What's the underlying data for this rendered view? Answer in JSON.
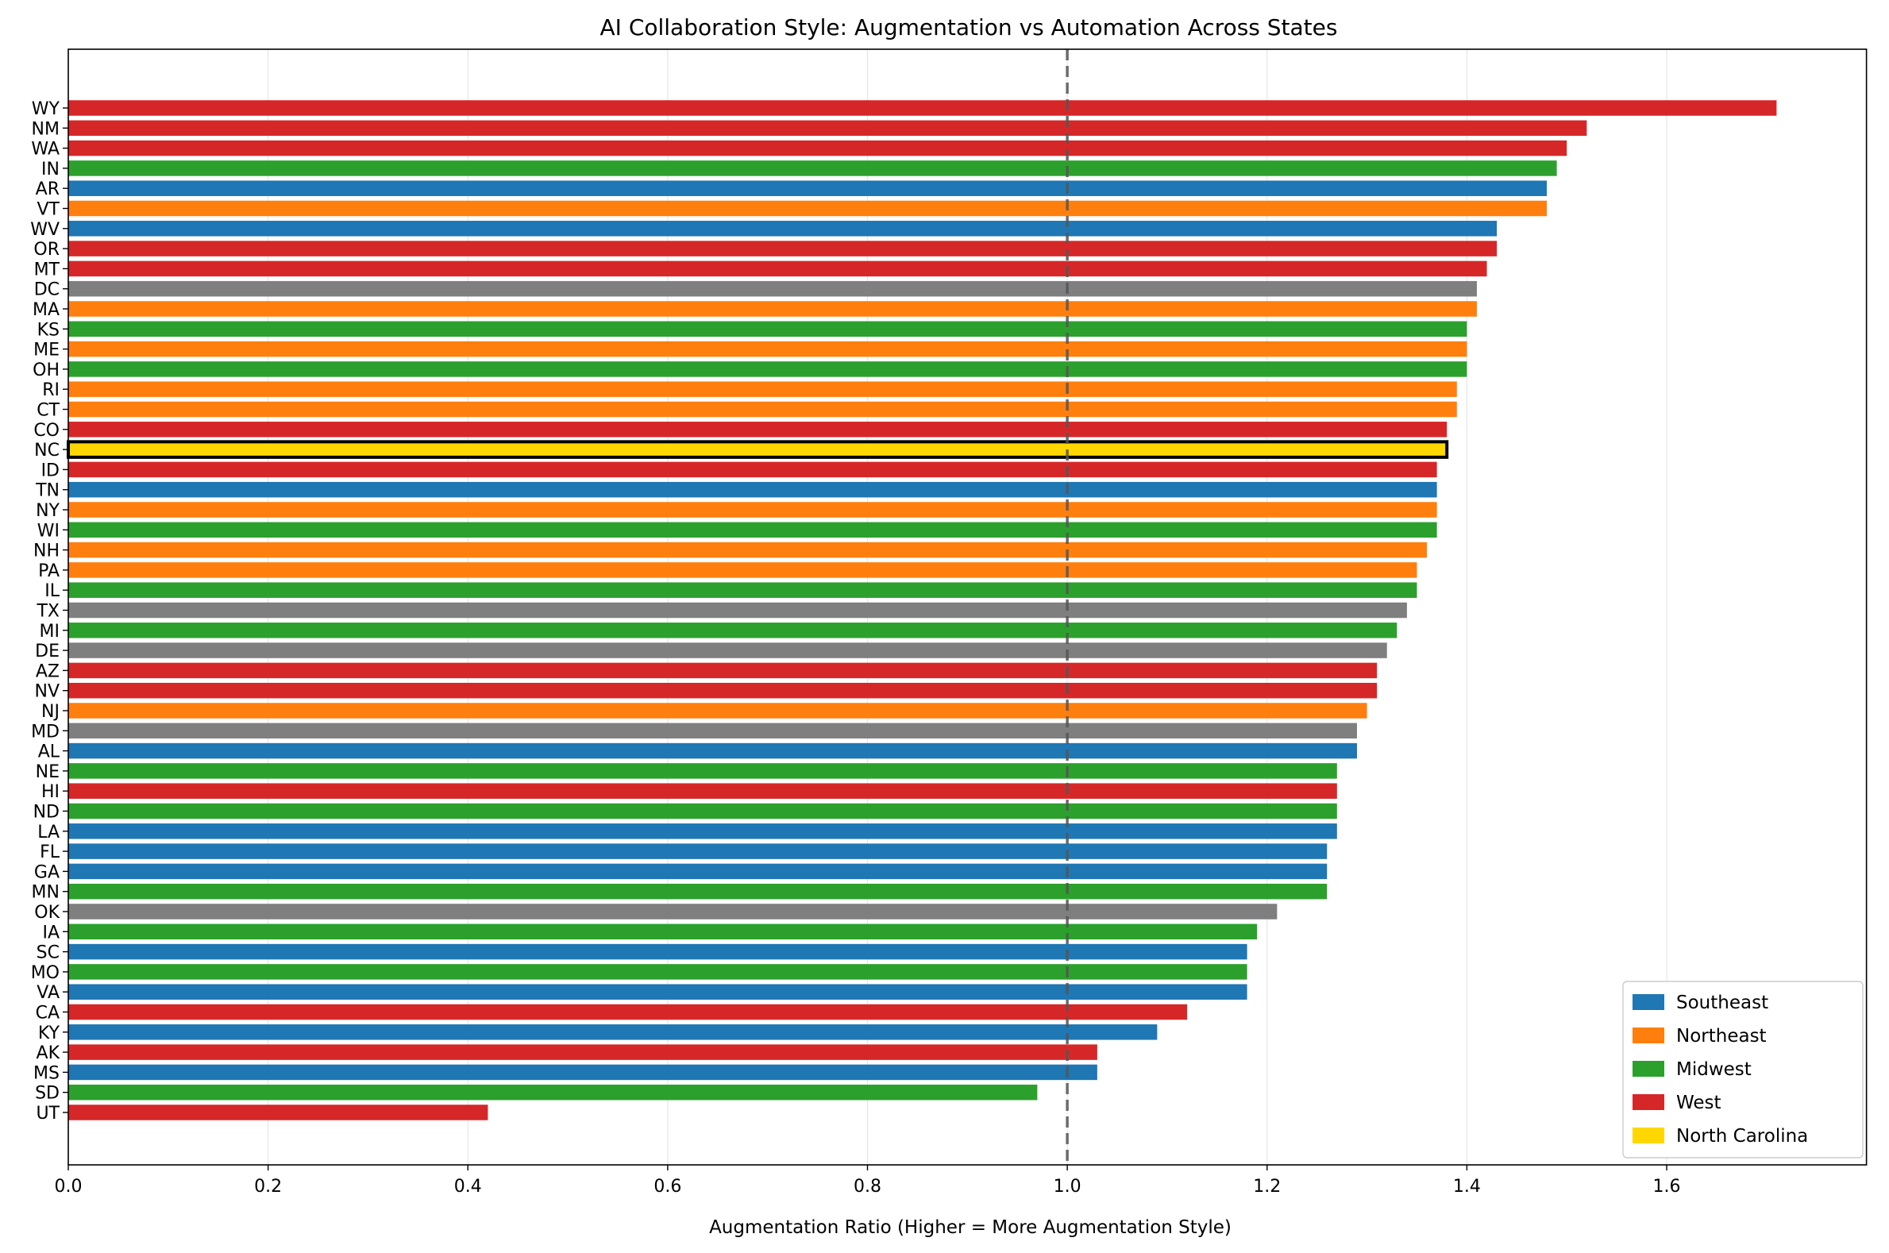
{
  "chart_data": {
    "type": "bar",
    "orientation": "horizontal",
    "title": "AI Collaboration Style: Augmentation vs Automation Across States",
    "xlabel": "Augmentation Ratio (Higher = More Augmentation Style)",
    "ylabel": "",
    "xlim": [
      0,
      1.8
    ],
    "xticks": [
      0.0,
      0.2,
      0.4,
      0.6,
      0.8,
      1.0,
      1.2,
      1.4,
      1.6
    ],
    "xtick_labels": [
      "0.0",
      "0.2",
      "0.4",
      "0.6",
      "0.8",
      "1.0",
      "1.2",
      "1.4",
      "1.6"
    ],
    "grid": "vertical",
    "reference_line": {
      "x": 1.0,
      "style": "dashed",
      "color": "#555555"
    },
    "legend_placement": "lower-right",
    "region_colors": {
      "Southeast": "#1f77b4",
      "Northeast": "#ff7f0e",
      "Midwest": "#2ca02c",
      "West": "#d62728",
      "Other": "#7f7f7f",
      "North Carolina": "#ffd700"
    },
    "legend": [
      {
        "label": "Southeast",
        "color": "#1f77b4"
      },
      {
        "label": "Northeast",
        "color": "#ff7f0e"
      },
      {
        "label": "Midwest",
        "color": "#2ca02c"
      },
      {
        "label": "West",
        "color": "#d62728"
      },
      {
        "label": "North Carolina",
        "color": "#ffd700"
      }
    ],
    "highlight": "NC",
    "bars": [
      {
        "state": "WY",
        "value": 1.71,
        "region": "West"
      },
      {
        "state": "NM",
        "value": 1.52,
        "region": "West"
      },
      {
        "state": "WA",
        "value": 1.5,
        "region": "West"
      },
      {
        "state": "IN",
        "value": 1.49,
        "region": "Midwest"
      },
      {
        "state": "AR",
        "value": 1.48,
        "region": "Southeast"
      },
      {
        "state": "VT",
        "value": 1.48,
        "region": "Northeast"
      },
      {
        "state": "WV",
        "value": 1.43,
        "region": "Southeast"
      },
      {
        "state": "OR",
        "value": 1.43,
        "region": "West"
      },
      {
        "state": "MT",
        "value": 1.42,
        "region": "West"
      },
      {
        "state": "DC",
        "value": 1.41,
        "region": "Other"
      },
      {
        "state": "MA",
        "value": 1.41,
        "region": "Northeast"
      },
      {
        "state": "KS",
        "value": 1.4,
        "region": "Midwest"
      },
      {
        "state": "ME",
        "value": 1.4,
        "region": "Northeast"
      },
      {
        "state": "OH",
        "value": 1.4,
        "region": "Midwest"
      },
      {
        "state": "RI",
        "value": 1.39,
        "region": "Northeast"
      },
      {
        "state": "CT",
        "value": 1.39,
        "region": "Northeast"
      },
      {
        "state": "CO",
        "value": 1.38,
        "region": "West"
      },
      {
        "state": "NC",
        "value": 1.38,
        "region": "North Carolina"
      },
      {
        "state": "ID",
        "value": 1.37,
        "region": "West"
      },
      {
        "state": "TN",
        "value": 1.37,
        "region": "Southeast"
      },
      {
        "state": "NY",
        "value": 1.37,
        "region": "Northeast"
      },
      {
        "state": "WI",
        "value": 1.37,
        "region": "Midwest"
      },
      {
        "state": "NH",
        "value": 1.36,
        "region": "Northeast"
      },
      {
        "state": "PA",
        "value": 1.35,
        "region": "Northeast"
      },
      {
        "state": "IL",
        "value": 1.35,
        "region": "Midwest"
      },
      {
        "state": "TX",
        "value": 1.34,
        "region": "Other"
      },
      {
        "state": "MI",
        "value": 1.33,
        "region": "Midwest"
      },
      {
        "state": "DE",
        "value": 1.32,
        "region": "Other"
      },
      {
        "state": "AZ",
        "value": 1.31,
        "region": "West"
      },
      {
        "state": "NV",
        "value": 1.31,
        "region": "West"
      },
      {
        "state": "NJ",
        "value": 1.3,
        "region": "Northeast"
      },
      {
        "state": "MD",
        "value": 1.29,
        "region": "Other"
      },
      {
        "state": "AL",
        "value": 1.29,
        "region": "Southeast"
      },
      {
        "state": "NE",
        "value": 1.27,
        "region": "Midwest"
      },
      {
        "state": "HI",
        "value": 1.27,
        "region": "West"
      },
      {
        "state": "ND",
        "value": 1.27,
        "region": "Midwest"
      },
      {
        "state": "LA",
        "value": 1.27,
        "region": "Southeast"
      },
      {
        "state": "FL",
        "value": 1.26,
        "region": "Southeast"
      },
      {
        "state": "GA",
        "value": 1.26,
        "region": "Southeast"
      },
      {
        "state": "MN",
        "value": 1.26,
        "region": "Midwest"
      },
      {
        "state": "OK",
        "value": 1.21,
        "region": "Other"
      },
      {
        "state": "IA",
        "value": 1.19,
        "region": "Midwest"
      },
      {
        "state": "SC",
        "value": 1.18,
        "region": "Southeast"
      },
      {
        "state": "MO",
        "value": 1.18,
        "region": "Midwest"
      },
      {
        "state": "VA",
        "value": 1.18,
        "region": "Southeast"
      },
      {
        "state": "CA",
        "value": 1.12,
        "region": "West"
      },
      {
        "state": "KY",
        "value": 1.09,
        "region": "Southeast"
      },
      {
        "state": "AK",
        "value": 1.03,
        "region": "West"
      },
      {
        "state": "MS",
        "value": 1.03,
        "region": "Southeast"
      },
      {
        "state": "SD",
        "value": 0.97,
        "region": "Midwest"
      },
      {
        "state": "UT",
        "value": 0.42,
        "region": "West"
      }
    ]
  }
}
